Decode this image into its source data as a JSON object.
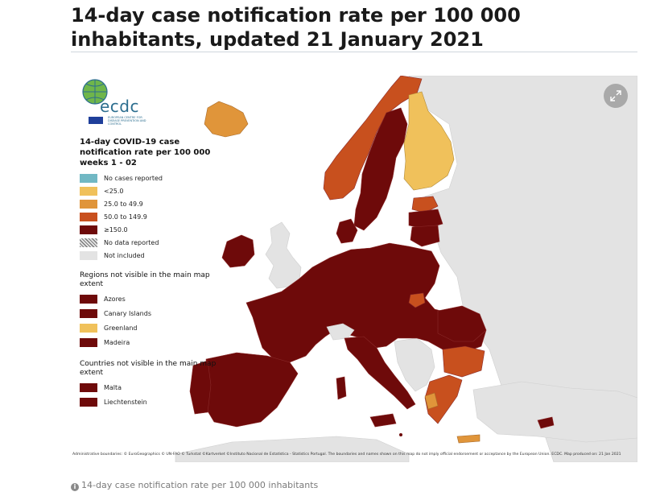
{
  "title": "14-day case notification rate per 100 000 inhabitants, updated 21 January 2021",
  "logo": {
    "wordmark": "ecdc",
    "subtitle": "EUROPEAN CENTRE FOR DISEASE PREVENTION AND CONTROL"
  },
  "legend": {
    "title": "14-day COVID-19 case notification rate per 100 000 weeks 1 - 02",
    "items": [
      {
        "label": "No cases reported",
        "color": "#71b8c4"
      },
      {
        "label": "<25.0",
        "color": "#f0c15b"
      },
      {
        "label": "25.0 to 49.9",
        "color": "#e0953a"
      },
      {
        "label": "50.0 to 149.9",
        "color": "#c8501e"
      },
      {
        "label": "≥150.0",
        "color": "#6e0a0a"
      },
      {
        "label": "No data reported",
        "color": "hatched"
      },
      {
        "label": "Not included",
        "color": "#e3e3e3"
      }
    ],
    "regions_title": "Regions not visible in the main map extent",
    "regions": [
      {
        "label": "Azores",
        "color": "#6e0a0a"
      },
      {
        "label": "Canary Islands",
        "color": "#6e0a0a"
      },
      {
        "label": "Greenland",
        "color": "#f0c15b"
      },
      {
        "label": "Madeira",
        "color": "#6e0a0a"
      }
    ],
    "countries_title": "Countries not visible in the main map extent",
    "countries": [
      {
        "label": "Malta",
        "color": "#6e0a0a"
      },
      {
        "label": "Liechtenstein",
        "color": "#6e0a0a"
      }
    ]
  },
  "map": {
    "colors": {
      "high": "#6e0a0a",
      "mid": "#c8501e",
      "low_mid": "#e0953a",
      "low": "#f0c15b",
      "not_included": "#e3e3e3",
      "sea": "#ffffff",
      "border": "#8a2a2a"
    },
    "countries": [
      {
        "name": "Iceland",
        "category": "low_mid"
      },
      {
        "name": "Norway",
        "category": "mid"
      },
      {
        "name": "Sweden",
        "category": "high"
      },
      {
        "name": "Finland",
        "category": "low"
      },
      {
        "name": "Estonia",
        "category": "mid"
      },
      {
        "name": "Latvia",
        "category": "high"
      },
      {
        "name": "Lithuania",
        "category": "high"
      },
      {
        "name": "Ireland",
        "category": "high"
      },
      {
        "name": "Denmark",
        "category": "high"
      },
      {
        "name": "Spain",
        "category": "high"
      },
      {
        "name": "Portugal",
        "category": "high"
      },
      {
        "name": "France",
        "category": "high"
      },
      {
        "name": "Belgium",
        "category": "high"
      },
      {
        "name": "Netherlands",
        "category": "high"
      },
      {
        "name": "Germany",
        "category": "high"
      },
      {
        "name": "Poland",
        "category": "high"
      },
      {
        "name": "Czechia",
        "category": "high"
      },
      {
        "name": "Slovakia",
        "category": "high"
      },
      {
        "name": "Austria",
        "category": "high"
      },
      {
        "name": "Switzerland",
        "category": "not_included"
      },
      {
        "name": "Italy",
        "category": "high"
      },
      {
        "name": "Slovenia",
        "category": "high"
      },
      {
        "name": "Croatia",
        "category": "high"
      },
      {
        "name": "Hungary",
        "category": "high"
      },
      {
        "name": "Romania",
        "category": "high"
      },
      {
        "name": "Bulgaria",
        "category": "mid"
      },
      {
        "name": "Greece",
        "category": "mid"
      },
      {
        "name": "Cyprus",
        "category": "high"
      },
      {
        "name": "Malta",
        "category": "high"
      },
      {
        "name": "United Kingdom",
        "category": "not_included"
      },
      {
        "name": "Non-EU neighbours",
        "category": "not_included"
      }
    ]
  },
  "expand_icon": "expand-arrows-icon",
  "footer_note": "Administrative boundaries: © EuroGeographics © UN-FAO © Turkstat ©Kartverket ©Instituto Nacional de Estatística - Statistics Portugal. The boundaries and names shown on this map do not imply official endorsement or acceptance by the European Union. ECDC. Map produced on: 21 Jan 2021",
  "caption": {
    "icon": "info-icon",
    "text": "14-day case notification rate per 100 000 inhabitants"
  }
}
